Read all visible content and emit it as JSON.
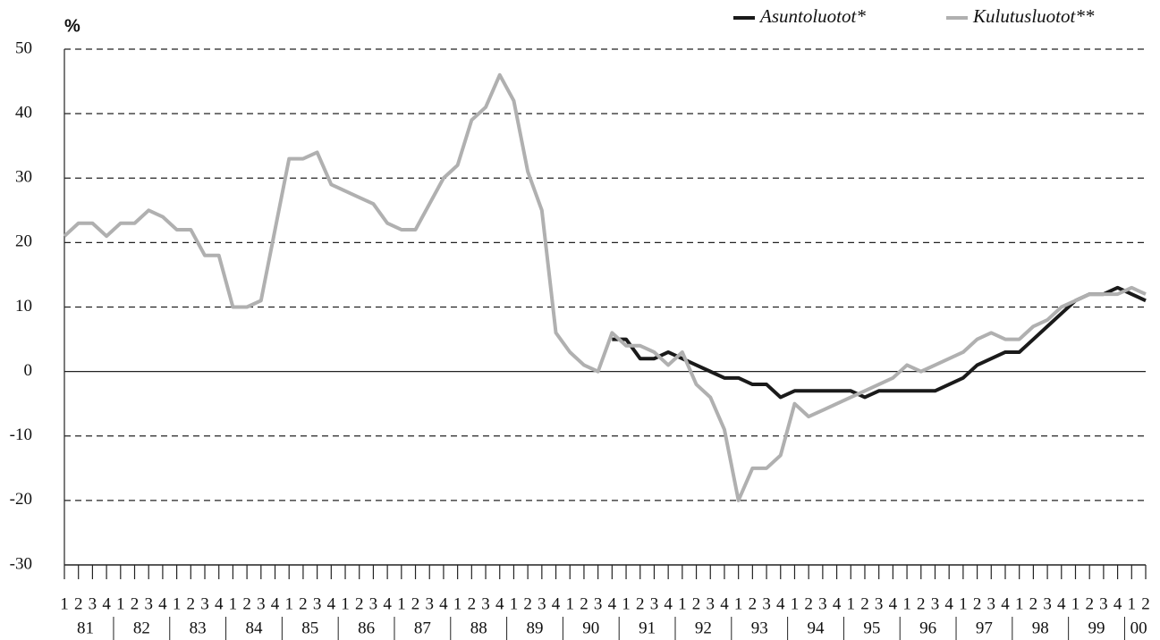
{
  "chart_data": {
    "type": "line",
    "y_label": "%",
    "categories": [
      "1",
      "2",
      "3",
      "4",
      "1",
      "2",
      "3",
      "4",
      "1",
      "2",
      "3",
      "4",
      "1",
      "2",
      "3",
      "4",
      "1",
      "2",
      "3",
      "4",
      "1",
      "2",
      "3",
      "4",
      "1",
      "2",
      "3",
      "4",
      "1",
      "2",
      "3",
      "4",
      "1",
      "2",
      "3",
      "4",
      "1",
      "2",
      "3",
      "4",
      "1",
      "2",
      "3",
      "4",
      "1",
      "2",
      "3",
      "4",
      "1",
      "2",
      "3",
      "4",
      "1",
      "2",
      "3",
      "4",
      "1",
      "2",
      "3",
      "4",
      "1",
      "2",
      "3",
      "4",
      "1",
      "2",
      "3",
      "4",
      "1",
      "2",
      "3",
      "4",
      "1",
      "2",
      "3",
      "4",
      "1",
      "2"
    ],
    "year_labels": [
      "81",
      "82",
      "83",
      "84",
      "85",
      "86",
      "87",
      "88",
      "89",
      "90",
      "91",
      "92",
      "93",
      "94",
      "95",
      "96",
      "97",
      "98",
      "99",
      "00"
    ],
    "series": [
      {
        "name": "Asuntoluotot*",
        "color": "#1a1a1a",
        "width": 4,
        "values": [
          null,
          null,
          null,
          null,
          null,
          null,
          null,
          null,
          null,
          null,
          null,
          null,
          null,
          null,
          null,
          null,
          null,
          null,
          null,
          null,
          null,
          null,
          null,
          null,
          null,
          null,
          null,
          null,
          null,
          null,
          null,
          null,
          null,
          null,
          null,
          null,
          null,
          null,
          null,
          5,
          5,
          2,
          2,
          3,
          2,
          1,
          0,
          -1,
          -1,
          -2,
          -2,
          -4,
          -3,
          -3,
          -3,
          -3,
          -3,
          -4,
          -3,
          -3,
          -3,
          -3,
          -3,
          -2,
          -1,
          1,
          2,
          3,
          3,
          5,
          7,
          9,
          11,
          12,
          12,
          13,
          12,
          11
        ]
      },
      {
        "name": "Kulutusluotot**",
        "color": "#b0b0b0",
        "width": 4,
        "values": [
          21,
          23,
          23,
          21,
          23,
          23,
          25,
          24,
          22,
          22,
          18,
          18,
          10,
          10,
          11,
          22,
          33,
          33,
          34,
          29,
          28,
          27,
          26,
          23,
          22,
          22,
          26,
          30,
          32,
          39,
          41,
          46,
          42,
          31,
          25,
          6,
          3,
          1,
          0,
          6,
          4,
          4,
          3,
          1,
          3,
          -2,
          -4,
          -9,
          -20,
          -15,
          -15,
          -13,
          -5,
          -7,
          -6,
          -5,
          -4,
          -3,
          -2,
          -1,
          1,
          0,
          1,
          2,
          3,
          5,
          6,
          5,
          5,
          7,
          8,
          10,
          11,
          12,
          12,
          12,
          13,
          12
        ]
      }
    ],
    "ylim": [
      -30,
      50
    ],
    "yticks": [
      -30,
      -20,
      -10,
      0,
      10,
      20,
      30,
      40,
      50
    ],
    "grid": true
  }
}
